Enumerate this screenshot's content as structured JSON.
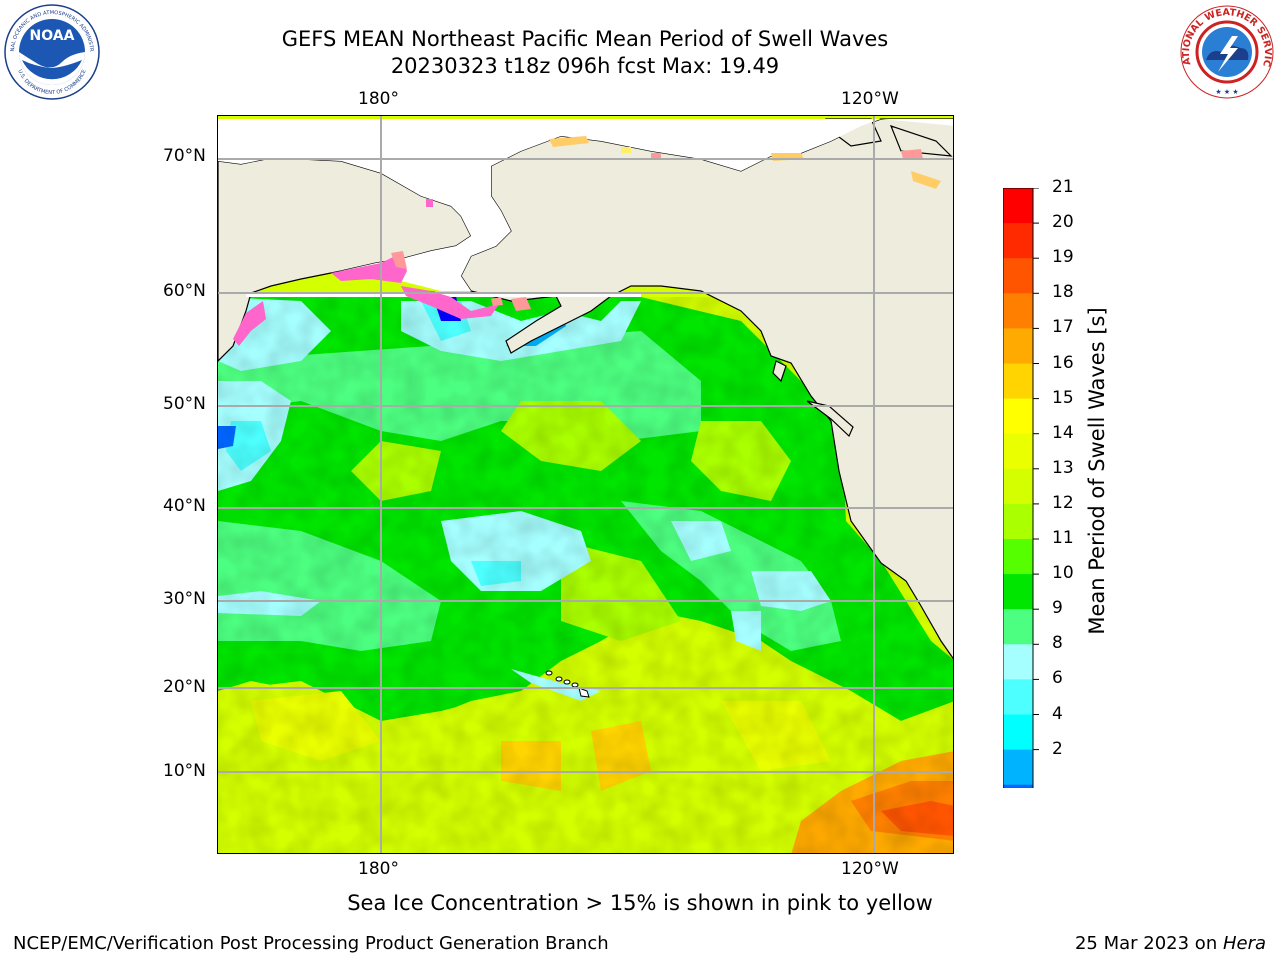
{
  "header": {
    "title_line1": "GEFS MEAN Northeast Pacific Mean Period of Swell Waves",
    "title_line2": "20230323 t18z 096h fcst   Max: 19.49"
  },
  "map": {
    "lon_labels_top": [
      "180°",
      "120°W"
    ],
    "lon_labels_bottom": [
      "180°",
      "120°W"
    ],
    "lat_labels": [
      "70°N",
      "60°N",
      "50°N",
      "40°N",
      "30°N",
      "20°N",
      "10°N"
    ],
    "land_color": "#eeecdc",
    "ice_colors": [
      "#ff66cc",
      "#ff9999",
      "#ffcc66",
      "#ffee66"
    ]
  },
  "colorbar": {
    "title": "Mean Period of Swell Waves [s]",
    "ticks": [
      "21",
      "20",
      "19",
      "18",
      "17",
      "16",
      "15",
      "14",
      "13",
      "12",
      "11",
      "10",
      "9",
      "8",
      "6",
      "4",
      "2"
    ],
    "colors_top_to_bottom": [
      "#ff0000",
      "#ff2a00",
      "#ff5500",
      "#ff8000",
      "#ffaa00",
      "#ffd400",
      "#ffff00",
      "#eaff00",
      "#d4ff00",
      "#aaff00",
      "#55ff00",
      "#00e600",
      "#4dff80",
      "#a6ffff",
      "#4dffff",
      "#00ffff",
      "#00b3ff",
      "#0066ff"
    ],
    "extend_color": "#0000ff"
  },
  "caption": "Sea Ice Concentration > 15% is shown in pink to yellow",
  "footer": {
    "left": "NCEP/EMC/Verification Post Processing Product Generation Branch",
    "right_date": "25 Mar 2023 on ",
    "right_host": "Hera"
  },
  "logos": {
    "noaa_text": "NOAA",
    "noaa_ring_top": "NATIONAL OCEANIC AND ATMOSPHERIC ADMINISTRATION",
    "noaa_ring_bottom": "U.S. DEPARTMENT OF COMMERCE",
    "nws_ring": "NATIONAL WEATHER SERVICE"
  }
}
